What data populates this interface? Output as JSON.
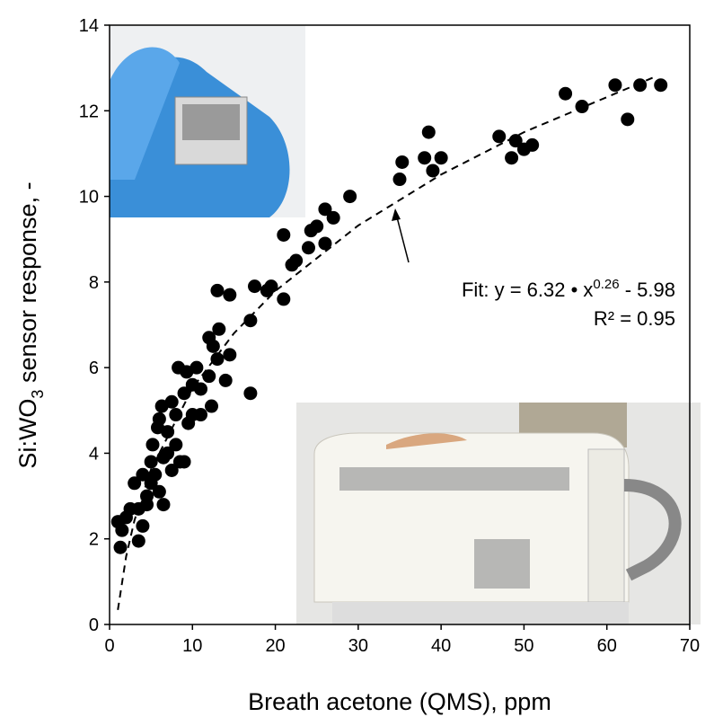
{
  "chart_data": {
    "type": "scatter",
    "xlabel": "Breath acetone (QMS), ppm",
    "ylabel": {
      "prefix": "Si:WO",
      "sub": "3",
      "suffix": " sensor response, -"
    },
    "fit_label": {
      "prefix": "Fit: y = 6.32 • x",
      "exponent": "0.26",
      "suffix": " - 5.98"
    },
    "r2_label": "R² = 0.95",
    "xlim": [
      0,
      70
    ],
    "xticks": [
      0,
      10,
      20,
      30,
      40,
      50,
      60,
      70
    ],
    "ylim": [
      0,
      14
    ],
    "yticks": [
      0,
      2,
      4,
      6,
      8,
      10,
      12,
      14
    ],
    "series": [
      {
        "color": "#000000",
        "x": [
          1,
          1.3,
          1.5,
          2,
          2.5,
          3,
          3.5,
          3.5,
          4,
          4,
          4.5,
          4.5,
          5,
          5,
          5.2,
          5.5,
          5.8,
          6,
          6,
          6.3,
          6.5,
          6.5,
          7,
          7,
          7.5,
          7.5,
          8,
          8,
          8.3,
          8.5,
          9,
          9,
          9.3,
          9.5,
          10,
          10,
          10.5,
          11,
          11,
          12,
          12,
          12.3,
          12.5,
          13,
          13,
          13.2,
          14,
          14.5,
          14.5,
          17,
          17,
          17.5,
          19,
          19.5,
          21,
          21,
          22,
          22.5,
          24,
          24.3,
          25,
          26,
          26,
          27,
          29,
          35,
          35.3,
          38,
          38.5,
          39,
          40,
          47,
          48.5,
          49,
          50,
          51,
          55,
          57,
          61,
          62.5,
          64,
          66.5
        ],
        "values": [
          2.4,
          1.8,
          2.2,
          2.5,
          2.7,
          3.3,
          1.95,
          2.7,
          3.5,
          2.3,
          3.0,
          2.8,
          3.8,
          3.3,
          4.2,
          3.5,
          4.6,
          3.1,
          4.8,
          5.1,
          2.8,
          3.9,
          4.0,
          4.5,
          3.6,
          5.2,
          4.2,
          4.9,
          6.0,
          3.8,
          5.4,
          3.8,
          5.9,
          4.7,
          5.6,
          4.9,
          6.0,
          5.5,
          4.9,
          5.8,
          6.7,
          5.1,
          6.5,
          6.2,
          7.8,
          6.9,
          5.7,
          6.3,
          7.7,
          5.4,
          7.1,
          7.9,
          7.8,
          7.9,
          9.1,
          7.6,
          8.4,
          8.5,
          8.8,
          9.2,
          9.3,
          8.9,
          9.7,
          9.5,
          10.0,
          10.4,
          10.8,
          10.9,
          11.5,
          10.6,
          10.9,
          11.4,
          10.9,
          11.3,
          11.1,
          11.2,
          12.4,
          12.1,
          12.6,
          11.8,
          12.6,
          12.6
        ]
      },
      {
        "color": "#000000",
        "dashed": true,
        "x": [
          1,
          2,
          3,
          5,
          10,
          15,
          20,
          30,
          40,
          50,
          66
        ],
        "values": [
          0.34,
          1.59,
          2.43,
          3.62,
          5.52,
          6.8,
          7.79,
          9.32,
          10.51,
          11.5,
          12.81
        ]
      }
    ]
  }
}
